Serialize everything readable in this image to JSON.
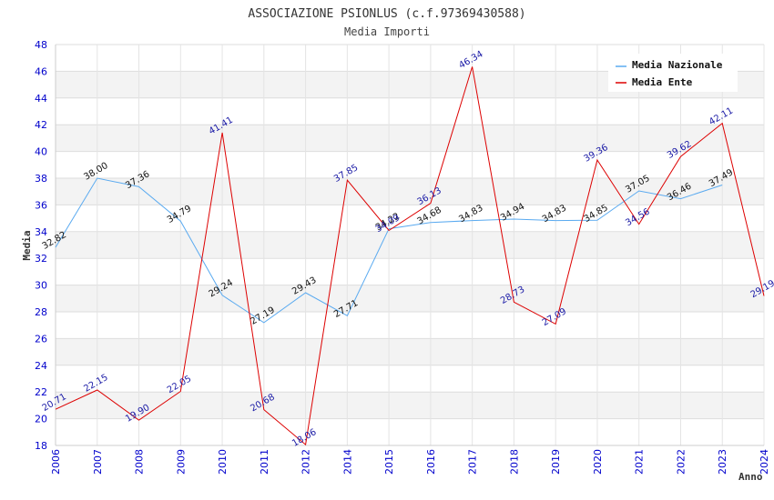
{
  "chart_data": {
    "type": "line",
    "title": "ASSOCIAZIONE PSIONLUS (c.f.97369430588)",
    "subtitle": "Media Importi",
    "xlabel": "Anno",
    "ylabel": "Media",
    "ylim": [
      18,
      48
    ],
    "ytick_step": 2,
    "categories": [
      "2006",
      "2007",
      "2008",
      "2009",
      "2010",
      "2011",
      "2012",
      "2014",
      "2015",
      "2016",
      "2017",
      "2018",
      "2019",
      "2020",
      "2021",
      "2022",
      "2023",
      "2024"
    ],
    "series": [
      {
        "name": "Media Nazionale",
        "color": "#5aaaf0",
        "values": [
          32.82,
          38.0,
          37.36,
          34.79,
          29.24,
          27.19,
          29.43,
          27.71,
          34.22,
          34.68,
          34.83,
          34.94,
          34.83,
          34.85,
          37.05,
          36.46,
          37.49,
          null
        ],
        "labels": [
          "32.82",
          "38.00",
          "37.36",
          "34.79",
          "29.24",
          "27.19",
          "29.43",
          "27.71",
          "34.22",
          "34.68",
          "34.83",
          "34.94",
          "34.83",
          "34.85",
          "37.05",
          "36.46",
          "37.49",
          null
        ]
      },
      {
        "name": "Media Ente",
        "color": "#dd0000",
        "values": [
          20.71,
          22.15,
          19.9,
          22.05,
          41.41,
          20.68,
          18.06,
          37.85,
          34.09,
          36.13,
          46.34,
          28.73,
          27.09,
          39.36,
          34.56,
          39.62,
          42.11,
          29.19
        ],
        "labels": [
          "20.71",
          "22.15",
          "19.90",
          "22.05",
          "41.41",
          "20.68",
          "18.06",
          "37.85",
          "34.09",
          "36.13",
          "46.34",
          "28.73",
          "27.09",
          "39.36",
          "34.56",
          "39.62",
          "42.11",
          "29.19"
        ]
      }
    ],
    "legend_position": "top-right",
    "grid": true
  }
}
